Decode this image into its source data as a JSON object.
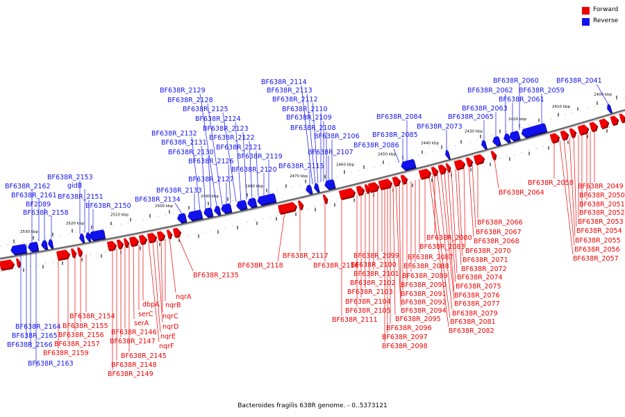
{
  "legend": {
    "forward": {
      "label": "Forward",
      "color": "#ee0000"
    },
    "reverse": {
      "label": "Reverse",
      "color": "#1111ee"
    }
  },
  "caption": "Bacteroides fragilis 638R genome. - 0..5373121",
  "ticks": [
    "2530 kbp",
    "2520 kbp",
    "2510 kbp",
    "2500 kbp",
    "2490 kbp",
    "2480 kbp",
    "2470 kbp",
    "2460 kbp",
    "2450 kbp",
    "2440 kbp",
    "2430 kbp",
    "2420 kbp",
    "2410 kbp",
    "2400 kbp"
  ],
  "reverse_labels": [
    "BF638R_2041",
    "BF638R_2059",
    "BF638R_2060",
    "BF638R_2061",
    "BF638R_2062",
    "BF638R_2063",
    "BF638R_2065",
    "BF638R_2073",
    "BF638R_2084",
    "BF638R_2085",
    "BF638R_2086",
    "BF638R_2106",
    "BF638R_2107",
    "BF638R_2108",
    "BF638R_2109",
    "BF638R_2110",
    "BF638R_2112",
    "BF638R_2113",
    "BF638R_2114",
    "BF638R_2115",
    "BF638R_2119",
    "BF638R_2120",
    "BF638R_2121",
    "BF638R_2122",
    "BF638R_2123",
    "BF638R_2124",
    "BF638R_2125",
    "BF638R_2126",
    "BF638R_2127",
    "BF638R_2128",
    "BF638R_2129",
    "BF638R_2130",
    "BF638R_2131",
    "BF638R_2132",
    "BF638R_2133",
    "BF638R_2134",
    "BF638R_2150",
    "BF638R_2151",
    "gidB",
    "BF638R_2153",
    "BF638R_2158",
    "BF2089",
    "BF638R_2161",
    "BF638R_2162",
    "BF638R_2163",
    "BF638R_2164",
    "BF638R_2165",
    "BF638R_2166"
  ],
  "forward_labels": [
    "BF638R_2049",
    "BF638R_2050",
    "BF638R_2051",
    "BF638R_2052",
    "BF638R_2053",
    "BF638R_2054",
    "BF638R_2055",
    "BF638R_2056",
    "BF638R_2057",
    "BF638R_2058",
    "BF638R_2064",
    "BF638R_2066",
    "BF638R_2067",
    "BF638R_2068",
    "BF638R_2070",
    "BF638R_2071",
    "BF638R_2072",
    "BF638R_2074",
    "BF638R_2075",
    "BF638R_2076",
    "BF638R_2077",
    "BF638R_2079",
    "BF638R_2080",
    "BF638R_2081",
    "BF638R_2082",
    "BF638R_2083",
    "BF638R_2087",
    "BF638R_2088",
    "BF638R_2089",
    "BF638R_2090",
    "BF638R_2091",
    "BF638R_2092",
    "BF638R_2094",
    "BF638R_2095",
    "BF638R_2096",
    "BF638R_2097",
    "BF638R_2098",
    "BF638R_2099",
    "BF638R_2100",
    "BF638R_2101",
    "BF638R_2102",
    "BF638R_2103",
    "BF638R_2104",
    "BF638R_2105",
    "BF638R_2111",
    "BF638R_2116",
    "BF638R_2117",
    "BF638R_2118",
    "BF638R_2135",
    "nqrA",
    "nqrB",
    "nqrC",
    "nqrD",
    "nqrE",
    "nqrF",
    "dbpA",
    "serC",
    "serA",
    "BF638R_2145",
    "BF638R_2146",
    "BF638R_2147",
    "BF638R_2148",
    "BF638R_2149",
    "BF638R_2154",
    "BF638R_2155",
    "BF638R_2156",
    "BF638R_2157",
    "BF638R_2159"
  ]
}
